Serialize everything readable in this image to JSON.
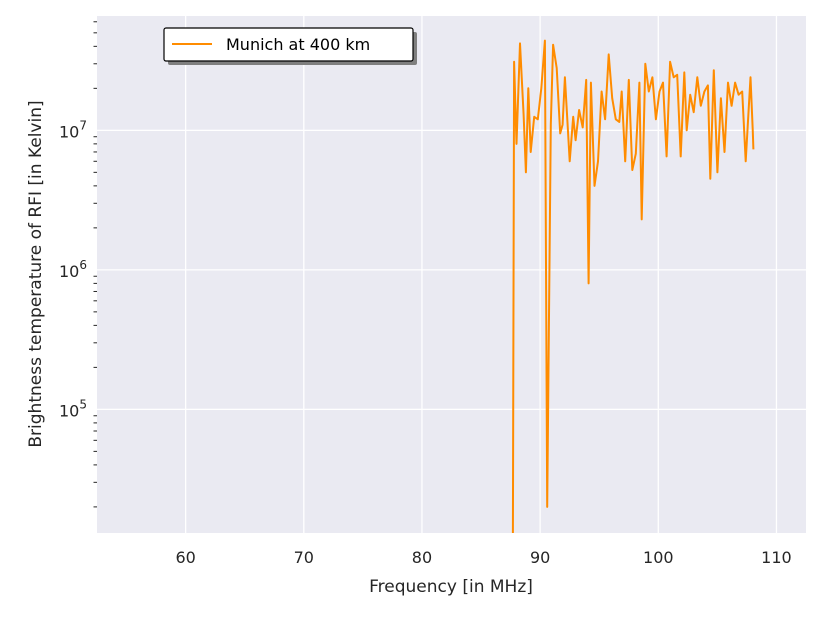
{
  "chart_data": {
    "type": "line",
    "xlabel": "Frequency [in MHz]",
    "ylabel": "Brightness temperature of RFI [in Kelvin]",
    "x_scale": "linear",
    "y_scale": "log",
    "xlim": [
      52.5,
      112.5
    ],
    "ylim": [
      13000,
      66000000
    ],
    "x_ticks": [
      60,
      70,
      80,
      90,
      100,
      110
    ],
    "x_tick_labels": [
      "60",
      "70",
      "80",
      "90",
      "100",
      "110"
    ],
    "y_ticks": [
      100000,
      1000000,
      10000000
    ],
    "y_tick_labels": [
      {
        "base": "10",
        "exp": "5"
      },
      {
        "base": "10",
        "exp": "6"
      },
      {
        "base": "10",
        "exp": "7"
      }
    ],
    "grid": true,
    "legend_position": "top-left",
    "series": [
      {
        "name": "Munich at 400 km",
        "color": "#ff8c00",
        "x": [
          87.7,
          87.8,
          88.0,
          88.3,
          88.6,
          88.8,
          89.0,
          89.2,
          89.5,
          89.8,
          90.1,
          90.4,
          90.6,
          90.9,
          91.1,
          91.4,
          91.7,
          91.9,
          92.1,
          92.5,
          92.8,
          93.0,
          93.3,
          93.6,
          93.9,
          94.1,
          94.3,
          94.6,
          94.9,
          95.2,
          95.5,
          95.8,
          96.1,
          96.4,
          96.7,
          96.9,
          97.2,
          97.5,
          97.8,
          98.1,
          98.4,
          98.6,
          98.9,
          99.2,
          99.5,
          99.8,
          100.1,
          100.4,
          100.7,
          101.0,
          101.3,
          101.6,
          101.9,
          102.2,
          102.4,
          102.7,
          103.0,
          103.3,
          103.6,
          103.9,
          104.2,
          104.4,
          104.7,
          105.0,
          105.3,
          105.6,
          105.9,
          106.2,
          106.5,
          106.8,
          107.1,
          107.4,
          107.8,
          108.0,
          108.05
        ],
        "y": [
          13000,
          31000000,
          8000000,
          42000000,
          13000000,
          5000000,
          20000000,
          7000000,
          12500000,
          12000000,
          20000000,
          44000000,
          20000,
          11000000,
          41000000,
          28000000,
          9500000,
          11000000,
          24000000,
          6000000,
          12500000,
          8500000,
          14000000,
          10500000,
          23000000,
          800000,
          22000000,
          4000000,
          6000000,
          19000000,
          12000000,
          35000000,
          17000000,
          12000000,
          11500000,
          19000000,
          6000000,
          23000000,
          5200000,
          6800000,
          22000000,
          2300000,
          30000000,
          19000000,
          24000000,
          12000000,
          19000000,
          22000000,
          6500000,
          31000000,
          24000000,
          25000000,
          6500000,
          26000000,
          10000000,
          18000000,
          13500000,
          24000000,
          15000000,
          19000000,
          21000000,
          4500000,
          27000000,
          5000000,
          17000000,
          7000000,
          22000000,
          15000000,
          22000000,
          18000000,
          19000000,
          6000000,
          24000000,
          9800000,
          7300000
        ]
      }
    ]
  }
}
